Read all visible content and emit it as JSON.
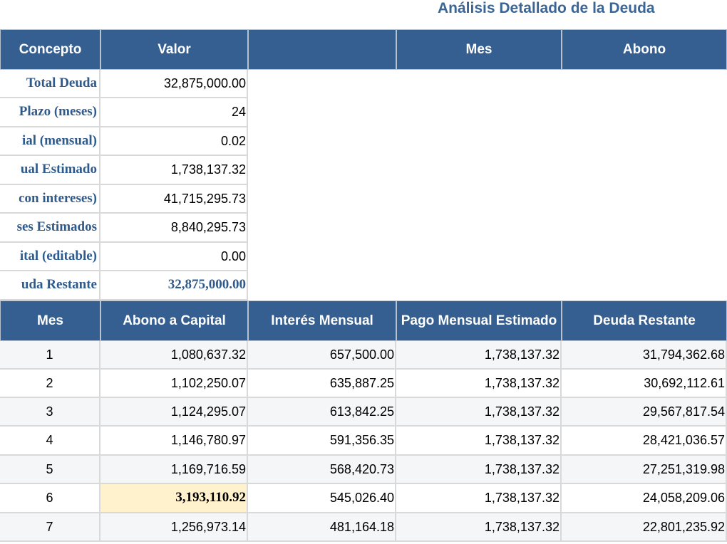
{
  "title": "Análisis Detallado de la Deuda",
  "summary_headers": [
    "Concepto",
    "Valor",
    "",
    "Mes",
    "Abono"
  ],
  "summary_rows": [
    {
      "label": "Total Deuda",
      "value": "32,875,000.00"
    },
    {
      "label": "Plazo (meses)",
      "value": "24"
    },
    {
      "label": "ial (mensual)",
      "value": "0.02"
    },
    {
      "label": "ual Estimado",
      "value": "1,738,137.32"
    },
    {
      "label": "con intereses)",
      "value": "41,715,295.73"
    },
    {
      "label": "ses Estimados",
      "value": "8,840,295.73"
    },
    {
      "label": "ital (editable)",
      "value": "0.00"
    },
    {
      "label": "uda Restante",
      "value": "32,875,000.00"
    }
  ],
  "amort_headers": [
    "Mes",
    "Abono a Capital",
    "Interés Mensual",
    "Pago Mensual Estimado",
    "Deuda Restante"
  ],
  "amort_rows": [
    {
      "mes": "1",
      "abono": "1,080,637.32",
      "interes": "657,500.00",
      "pago": "1,738,137.32",
      "deuda": "31,794,362.68"
    },
    {
      "mes": "2",
      "abono": "1,102,250.07",
      "interes": "635,887.25",
      "pago": "1,738,137.32",
      "deuda": "30,692,112.61"
    },
    {
      "mes": "3",
      "abono": "1,124,295.07",
      "interes": "613,842.25",
      "pago": "1,738,137.32",
      "deuda": "29,567,817.54"
    },
    {
      "mes": "4",
      "abono": "1,146,780.97",
      "interes": "591,356.35",
      "pago": "1,738,137.32",
      "deuda": "28,421,036.57"
    },
    {
      "mes": "5",
      "abono": "1,169,716.59",
      "interes": "568,420.73",
      "pago": "1,738,137.32",
      "deuda": "27,251,319.98"
    },
    {
      "mes": "6",
      "abono": "3,193,110.92",
      "interes": "545,026.40",
      "pago": "1,738,137.32",
      "deuda": "24,058,209.06",
      "highlight": true
    },
    {
      "mes": "7",
      "abono": "1,256,973.14",
      "interes": "481,164.18",
      "pago": "1,738,137.32",
      "deuda": "22,801,235.92"
    }
  ],
  "colors": {
    "header_bg": "#355e91",
    "label_text": "#2f5a8c",
    "highlight_bg": "#fff2cc"
  }
}
